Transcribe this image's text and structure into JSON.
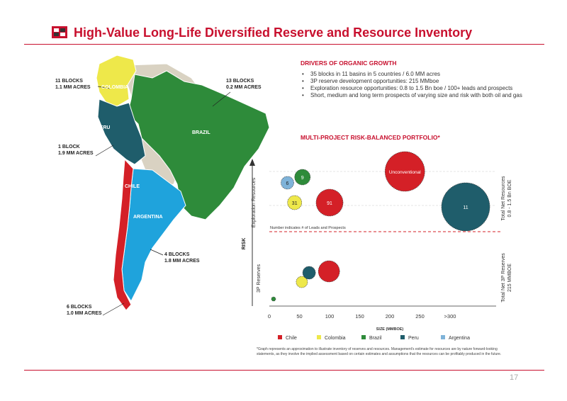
{
  "header": {
    "title": "High-Value Long-Life Diversified Reserve and Resource Inventory",
    "page_number": "17"
  },
  "drivers": {
    "heading": "DRIVERS OF ORGANIC GROWTH",
    "items": [
      "35 blocks in 11 basins in 5 countries / 6.0 MM acres",
      "3P reserve development opportunities: 215 MMboe",
      "Exploration resource opportunities: 0.8 to 1.5 Bn boe / 100+ leads and prospects",
      "Short, medium and long term prospects of varying size and risk with both oil and gas"
    ]
  },
  "map": {
    "countries": {
      "colombia": "COLOMBIA",
      "brazil": "BRAZIL",
      "peru": "PERU",
      "chile": "CHILE",
      "argentina": "ARGENTINA"
    },
    "callouts": {
      "colombia": [
        "11 BLOCKS",
        "1.1 MM ACRES"
      ],
      "brazil": [
        "13 BLOCKS",
        "0.2 MM ACRES"
      ],
      "peru": [
        "1 BLOCK",
        "1.9 MM ACRES"
      ],
      "argentina": [
        "4 BLOCKS",
        "1.8 MM ACRES"
      ],
      "chile": [
        "6 BLOCKS",
        "1.0 MM ACRES"
      ]
    },
    "colors": {
      "chile": "#d42027",
      "colombia": "#eee84a",
      "brazil": "#2e8b3a",
      "peru": "#1f5d6b",
      "argentina": "#1fa3dc",
      "other": "#d9d2c2"
    }
  },
  "portfolio": {
    "heading": "MULTI-PROJECT RISK-BALANCED PORTFOLIO*",
    "footnote": "*Graph represents an approximation to illustrate inventory of reserves and resources. Management's estimate for resources are by nature forward-looking statements, as they involve the implied assessment based on certain estimates and assumptions that the resources can be profitably produced in the future."
  },
  "chart_data": {
    "type": "scatter",
    "xlabel": "SIZE (MMBOE)",
    "ylabel": "RISK",
    "x_ticks": [
      "0",
      "50",
      "100",
      "150",
      "200",
      "250",
      ">300"
    ],
    "xlim": [
      0,
      300
    ],
    "grid": true,
    "legend_placement": "bottom",
    "divider_label": "Number indicates # of Leads and Prospects",
    "band_labels": {
      "exploration": "Exploration Resources",
      "reserves": "3P Reserves"
    },
    "right_labels": {
      "exploration": [
        "Total Net Resources",
        "0.8 - 1.5 Bn BOE"
      ],
      "reserves": [
        "Total Net 3P Reserves",
        "215 MMBOE"
      ]
    },
    "legend": [
      {
        "name": "Chile",
        "color": "#d42027"
      },
      {
        "name": "Colombia",
        "color": "#eee84a"
      },
      {
        "name": "Brazil",
        "color": "#2e8b3a"
      },
      {
        "name": "Peru",
        "color": "#1f5d6b"
      },
      {
        "name": "Argentina",
        "color": "#7fb3d9"
      }
    ],
    "exploration_bubbles": [
      {
        "country": "Argentina",
        "x": 30,
        "label": "6"
      },
      {
        "country": "Brazil",
        "x": 55,
        "label": "9"
      },
      {
        "country": "Colombia",
        "x": 42,
        "label": "31"
      },
      {
        "country": "Chile",
        "x": 100,
        "label": "91"
      },
      {
        "country": "Chile",
        "x": 225,
        "label": "Unconventional"
      },
      {
        "country": "Peru",
        "x": 320,
        "label": "11"
      }
    ],
    "reserve_bubbles": [
      {
        "country": "Brazil",
        "x": 7
      },
      {
        "country": "Colombia",
        "x": 54
      },
      {
        "country": "Peru",
        "x": 66
      },
      {
        "country": "Chile",
        "x": 99
      }
    ]
  }
}
